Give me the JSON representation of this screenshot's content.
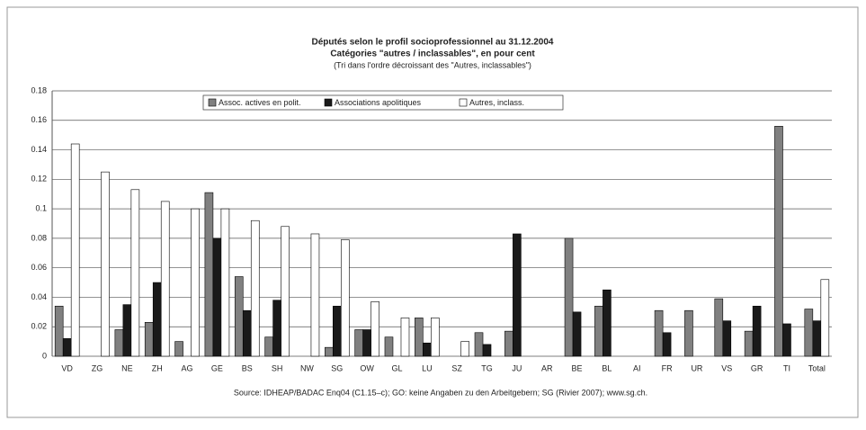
{
  "chart_data": {
    "type": "bar",
    "title": "Députés selon le profil socioprofessionnel au 31.12.2004",
    "subtitle": "Catégories \"autres / inclassables\", en pour cent",
    "note": "(Tri dans l'ordre décroissant des \"Autres, inclassables\")",
    "source": "Source: IDHEAP/BADAC Enq04 (C1.15–c); GO: keine Angaben zu den Arbeitgebern; SG (Rivier 2007); www.sg.ch.",
    "categories": [
      "VD",
      "ZG",
      "NE",
      "ZH",
      "AG",
      "GE",
      "BS",
      "SH",
      "NW",
      "SG",
      "OW",
      "GL",
      "LU",
      "SZ",
      "TG",
      "JU",
      "AR",
      "BE",
      "BL",
      "AI",
      "FR",
      "UR",
      "VS",
      "GR",
      "TI",
      "Total"
    ],
    "series": [
      {
        "name": "Assoc. actives en polit.",
        "color": "#808080",
        "values": [
          0.034,
          0,
          0.018,
          0.023,
          0.01,
          0.111,
          0.054,
          0.013,
          0,
          0.006,
          0.018,
          0.013,
          0.026,
          0,
          0.016,
          0.017,
          0,
          0.08,
          0.034,
          0,
          0.031,
          0.031,
          0.039,
          0.017,
          0.156,
          0.032
        ]
      },
      {
        "name": "Associations apolitiques",
        "color": "#1a1a1a",
        "values": [
          0.012,
          0,
          0.035,
          0.05,
          0,
          0.08,
          0.031,
          0.038,
          0,
          0.034,
          0.018,
          0,
          0.009,
          0,
          0.008,
          0.083,
          0,
          0.03,
          0.045,
          0,
          0.016,
          0,
          0.024,
          0.034,
          0.022,
          0.024
        ]
      },
      {
        "name": "Autres, inclass.",
        "color": "#ffffff",
        "values": [
          0.144,
          0.125,
          0.113,
          0.105,
          0.1,
          0.1,
          0.092,
          0.088,
          0.083,
          0.079,
          0.037,
          0.026,
          0.026,
          0.01,
          0,
          0,
          0,
          0,
          0,
          0,
          0,
          0,
          0,
          0,
          0,
          0.052
        ]
      }
    ],
    "ylim": [
      0,
      0.18
    ],
    "yticks": [
      0,
      0.02,
      0.04,
      0.06,
      0.08,
      0.1,
      0.12,
      0.14,
      0.16,
      0.18
    ],
    "grid": true,
    "legend": "top"
  }
}
